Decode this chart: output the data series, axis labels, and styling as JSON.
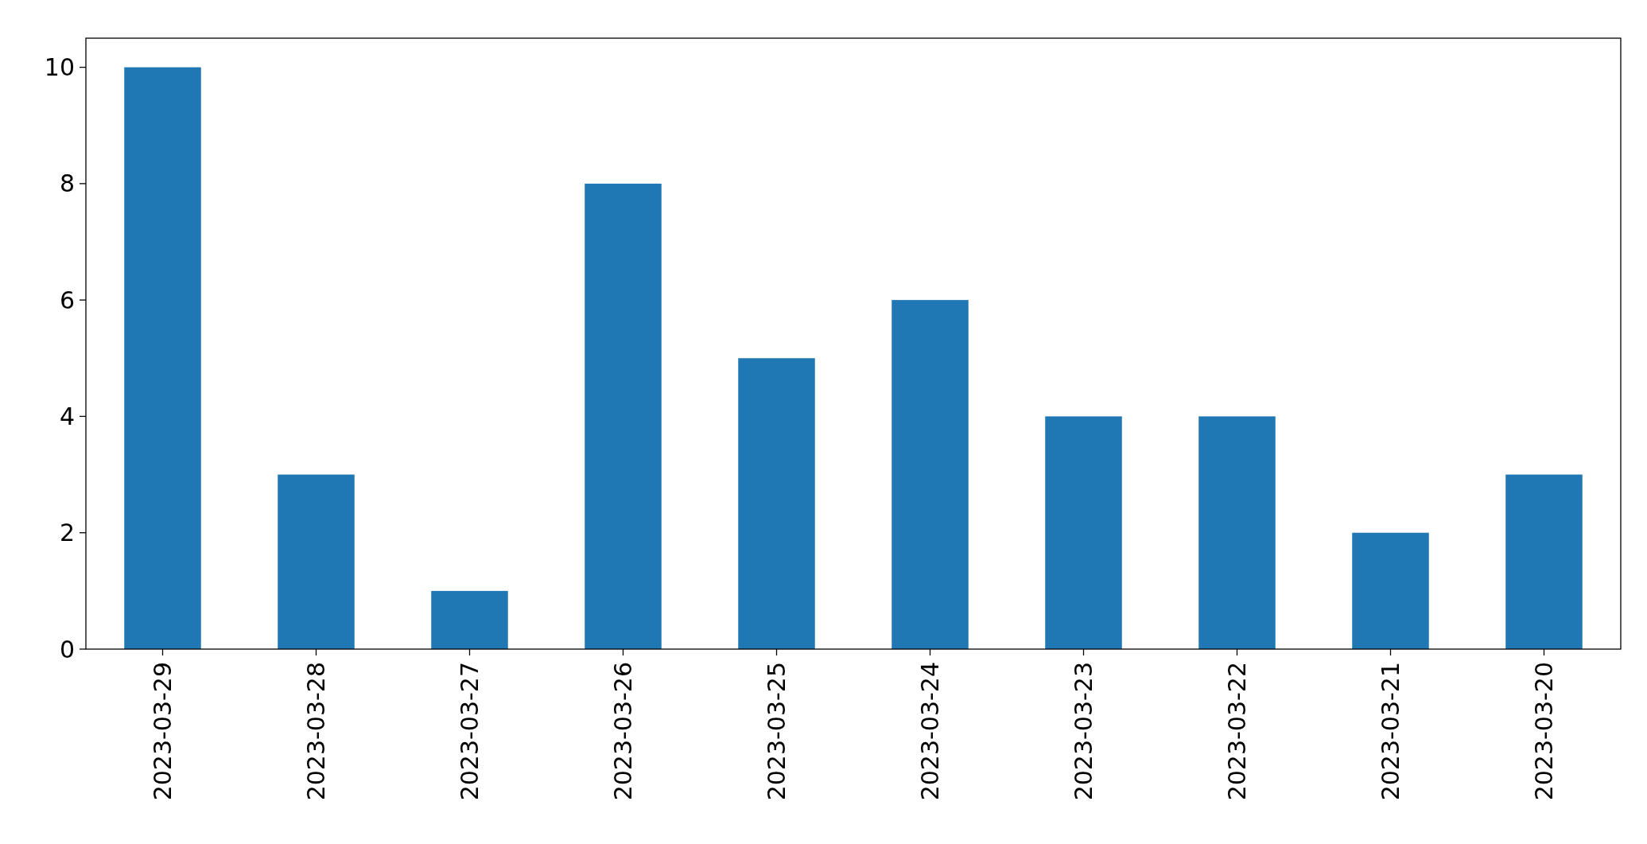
{
  "chart_data": {
    "type": "bar",
    "categories": [
      "2023-03-29",
      "2023-03-28",
      "2023-03-27",
      "2023-03-26",
      "2023-03-25",
      "2023-03-24",
      "2023-03-23",
      "2023-03-22",
      "2023-03-21",
      "2023-03-20"
    ],
    "values": [
      10,
      3,
      1,
      8,
      5,
      6,
      4,
      4,
      2,
      3
    ],
    "color": "#1f77b4",
    "ylim": [
      0,
      10.5
    ],
    "yticks": [
      0,
      2,
      4,
      6,
      8,
      10
    ],
    "grid": false
  }
}
